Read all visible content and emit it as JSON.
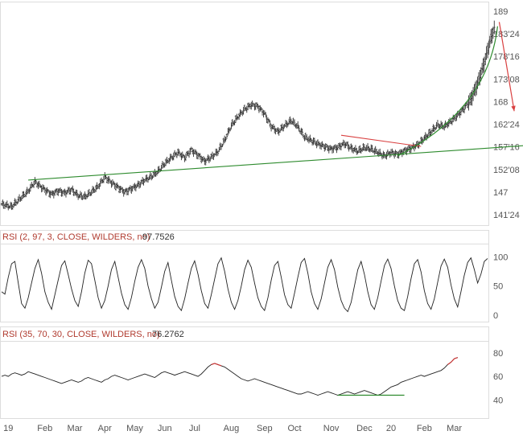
{
  "chart_data": [
    {
      "type": "ohlc",
      "panel": "price",
      "ylim": [
        137,
        190
      ],
      "y_ticks": [
        "189",
        "183'24",
        "178'16",
        "173'08",
        "168",
        "162'24",
        "157'16",
        "152'08",
        "147",
        "141'24"
      ],
      "y_tick_values": [
        189,
        183.75,
        178.5,
        173.25,
        168,
        162.75,
        157.5,
        152.25,
        147,
        141.75
      ],
      "close_series": [
        [
          0,
          144.2
        ],
        [
          3,
          143.6
        ],
        [
          6,
          145.8
        ],
        [
          8,
          147.2
        ],
        [
          10,
          149.4
        ],
        [
          12,
          148.1
        ],
        [
          15,
          146.5
        ],
        [
          17,
          147.3
        ],
        [
          19,
          146.8
        ],
        [
          21,
          147.6
        ],
        [
          23,
          146.2
        ],
        [
          25,
          145.9
        ],
        [
          27,
          147.0
        ],
        [
          29,
          148.3
        ],
        [
          31,
          150.5
        ],
        [
          33,
          149.2
        ],
        [
          35,
          148.1
        ],
        [
          37,
          147.0
        ],
        [
          39,
          147.8
        ],
        [
          41,
          148.6
        ],
        [
          43,
          149.8
        ],
        [
          45,
          150.6
        ],
        [
          47,
          151.8
        ],
        [
          49,
          153.6
        ],
        [
          51,
          155.0
        ],
        [
          53,
          156.2
        ],
        [
          55,
          155.0
        ],
        [
          57,
          156.8
        ],
        [
          59,
          155.6
        ],
        [
          61,
          154.2
        ],
        [
          63,
          155.1
        ],
        [
          65,
          156.4
        ],
        [
          67,
          159.0
        ],
        [
          69,
          162.4
        ],
        [
          71,
          164.5
        ],
        [
          73,
          166.2
        ],
        [
          75,
          167.3
        ],
        [
          77,
          166.9
        ],
        [
          79,
          165.2
        ],
        [
          81,
          162.3
        ],
        [
          83,
          161.0
        ],
        [
          85,
          162.4
        ],
        [
          87,
          163.6
        ],
        [
          89,
          162.2
        ],
        [
          91,
          159.8
        ],
        [
          93,
          159.0
        ],
        [
          95,
          158.2
        ],
        [
          97,
          157.6
        ],
        [
          99,
          157.0
        ],
        [
          101,
          157.4
        ],
        [
          103,
          158.3
        ],
        [
          105,
          157.2
        ],
        [
          107,
          156.5
        ],
        [
          109,
          157.3
        ],
        [
          111,
          157.0
        ],
        [
          113,
          156.2
        ],
        [
          115,
          155.4
        ],
        [
          117,
          156.2
        ],
        [
          119,
          155.8
        ],
        [
          121,
          156.6
        ],
        [
          123,
          157.2
        ],
        [
          125,
          158.0
        ],
        [
          127,
          159.5
        ],
        [
          129,
          161.0
        ],
        [
          131,
          162.6
        ],
        [
          133,
          162.2
        ],
        [
          135,
          163.4
        ],
        [
          137,
          164.8
        ],
        [
          139,
          166.5
        ],
        [
          141,
          168.6
        ],
        [
          143,
          172.2
        ],
        [
          145,
          177.0
        ],
        [
          147,
          182.8
        ],
        [
          148,
          185.0
        ]
      ],
      "trendlines": [
        {
          "color": "#2e8b2e",
          "from": [
            8,
            149.8
          ],
          "to": [
            174,
            158.7
          ]
        },
        {
          "color": "#d94040",
          "from": [
            102,
            160.2
          ],
          "to": [
            126,
            157.6
          ]
        },
        {
          "color": "#2e8b2e",
          "style": "curve",
          "from": [
            119,
            155.4
          ],
          "via": [
            146,
            166.0
          ],
          "to": [
            149,
            185.5
          ]
        },
        {
          "color": "#d94040",
          "style": "arrow",
          "from": [
            149.5,
            186.5
          ],
          "to": [
            154,
            165.8
          ]
        }
      ]
    },
    {
      "type": "line",
      "panel": "rsi_fast",
      "title": "RSI (2, 97, 3, CLOSE, WILDERS, no)",
      "last_value": "97.7526",
      "ylim": [
        0,
        110
      ],
      "y_ticks": [
        "100",
        "50",
        "0"
      ],
      "y_tick_values": [
        100,
        50,
        0
      ],
      "overbought": 97,
      "oversold": 3,
      "values": [
        40,
        36,
        65,
        88,
        92,
        55,
        20,
        12,
        30,
        55,
        80,
        95,
        72,
        40,
        22,
        10,
        35,
        60,
        85,
        93,
        70,
        45,
        25,
        15,
        40,
        72,
        94,
        88,
        60,
        30,
        12,
        25,
        50,
        78,
        92,
        65,
        38,
        18,
        10,
        30,
        58,
        82,
        95,
        80,
        50,
        28,
        12,
        22,
        48,
        75,
        90,
        60,
        32,
        15,
        8,
        28,
        55,
        80,
        93,
        70,
        42,
        20,
        12,
        35,
        62,
        88,
        98,
        75,
        45,
        22,
        10,
        25,
        50,
        78,
        94,
        82,
        55,
        30,
        15,
        8,
        30,
        60,
        85,
        92,
        65,
        35,
        18,
        12,
        38,
        65,
        90,
        97,
        72,
        40,
        20,
        10,
        28,
        55,
        82,
        95,
        78,
        48,
        25,
        12,
        6,
        22,
        50,
        78,
        92,
        70,
        40,
        18,
        10,
        30,
        58,
        85,
        96,
        80,
        50,
        25,
        12,
        8,
        32,
        62,
        88,
        95,
        74,
        42,
        20,
        10,
        28,
        56,
        84,
        96,
        82,
        52,
        28,
        14,
        40,
        68,
        90,
        98,
        78,
        55,
        70,
        92,
        97
      ]
    },
    {
      "type": "line",
      "panel": "rsi_slow",
      "title": "RSI (35, 70, 30, CLOSE, WILDERS, no)",
      "last_value": "76.2762",
      "ylim": [
        30,
        86
      ],
      "y_ticks": [
        "80",
        "60",
        "40"
      ],
      "y_tick_values": [
        80,
        60,
        40
      ],
      "overbought": 70,
      "oversold": 30,
      "values": [
        60,
        61,
        60,
        62,
        63,
        62,
        61,
        62,
        64,
        63,
        62,
        61,
        60,
        59,
        58,
        57,
        56,
        55,
        54,
        55,
        56,
        57,
        56,
        55,
        56,
        58,
        59,
        58,
        57,
        56,
        55,
        57,
        58,
        60,
        61,
        60,
        59,
        58,
        57,
        58,
        59,
        60,
        61,
        62,
        61,
        60,
        59,
        61,
        63,
        64,
        63,
        62,
        61,
        62,
        63,
        64,
        63,
        62,
        61,
        60,
        62,
        65,
        68,
        70,
        71,
        70,
        69,
        68,
        66,
        64,
        62,
        60,
        58,
        57,
        56,
        57,
        58,
        57,
        56,
        55,
        54,
        53,
        52,
        51,
        50,
        49,
        48,
        47,
        46,
        45,
        45,
        46,
        47,
        46,
        45,
        44,
        45,
        46,
        47,
        46,
        45,
        44,
        45,
        46,
        47,
        46,
        45,
        46,
        47,
        48,
        47,
        46,
        45,
        44,
        45,
        47,
        49,
        51,
        52,
        53,
        55,
        56,
        57,
        58,
        59,
        60,
        61,
        60,
        61,
        62,
        63,
        64,
        65,
        67,
        70,
        72,
        75,
        76
      ]
    }
  ],
  "x_axis": {
    "labels": [
      "19",
      "Feb",
      "Mar",
      "Apr",
      "May",
      "Jun",
      "Jul",
      "Aug",
      "Sep",
      "Oct",
      "Nov",
      "Dec",
      "20",
      "Feb",
      "Mar"
    ],
    "label_index": [
      2,
      13,
      22,
      31,
      40,
      49,
      58,
      69,
      79,
      88,
      99,
      109,
      117,
      127,
      136
    ]
  },
  "colors": {
    "bars": "#333333",
    "line": "#222222",
    "overbought_highlight": "#cc3333",
    "oversold_highlight": "#2e8b2e",
    "label_title": "#b03a2e",
    "label_value": "#333333",
    "axis_text": "#555555",
    "panel_border": "#dddddd",
    "grid_bg": "#ffffff"
  }
}
